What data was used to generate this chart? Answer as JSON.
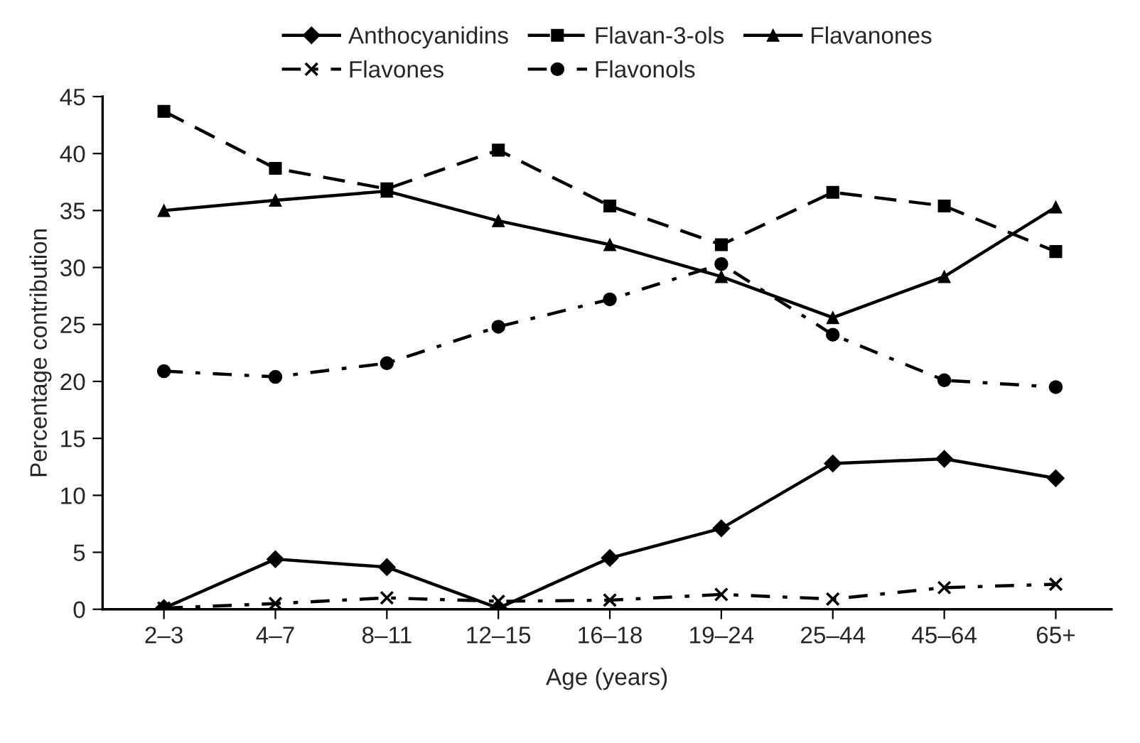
{
  "chart_data": {
    "type": "line",
    "xlabel": "Age (years)",
    "ylabel": "Percentage contribution",
    "categories": [
      "2–3",
      "4–7",
      "8–11",
      "12–15",
      "16–18",
      "19–24",
      "25–44",
      "45–64",
      "65+"
    ],
    "series": [
      {
        "name": "Anthocyanidins",
        "color": "#000000",
        "marker": "diamond",
        "line_style": "solid",
        "values": [
          0.1,
          4.4,
          3.7,
          0.1,
          4.5,
          7.1,
          12.8,
          13.2,
          11.5
        ]
      },
      {
        "name": "Flavan-3-ols",
        "color": "#000000",
        "marker": "square",
        "line_style": "dashed",
        "values": [
          43.7,
          38.7,
          36.9,
          40.3,
          35.4,
          32.0,
          36.6,
          35.4,
          31.4
        ]
      },
      {
        "name": "Flavanones",
        "color": "#000000",
        "marker": "triangle",
        "line_style": "solid",
        "values": [
          35.0,
          35.9,
          36.7,
          34.1,
          32.0,
          29.2,
          25.6,
          29.2,
          35.3
        ]
      },
      {
        "name": "Flavones",
        "color": "#000000",
        "marker": "cross",
        "line_style": "dashdot",
        "values": [
          0.1,
          0.5,
          1.0,
          0.7,
          0.8,
          1.3,
          0.9,
          1.9,
          2.2
        ]
      },
      {
        "name": "Flavonols",
        "color": "#000000",
        "marker": "circle",
        "line_style": "dashdot",
        "values": [
          20.9,
          20.4,
          21.6,
          24.8,
          27.2,
          30.3,
          24.1,
          20.1,
          19.5
        ]
      }
    ],
    "ylim": [
      0,
      45
    ],
    "yticks": [
      0,
      5,
      10,
      15,
      20,
      25,
      30,
      35,
      40,
      45
    ],
    "grid": false,
    "legend": "top"
  }
}
